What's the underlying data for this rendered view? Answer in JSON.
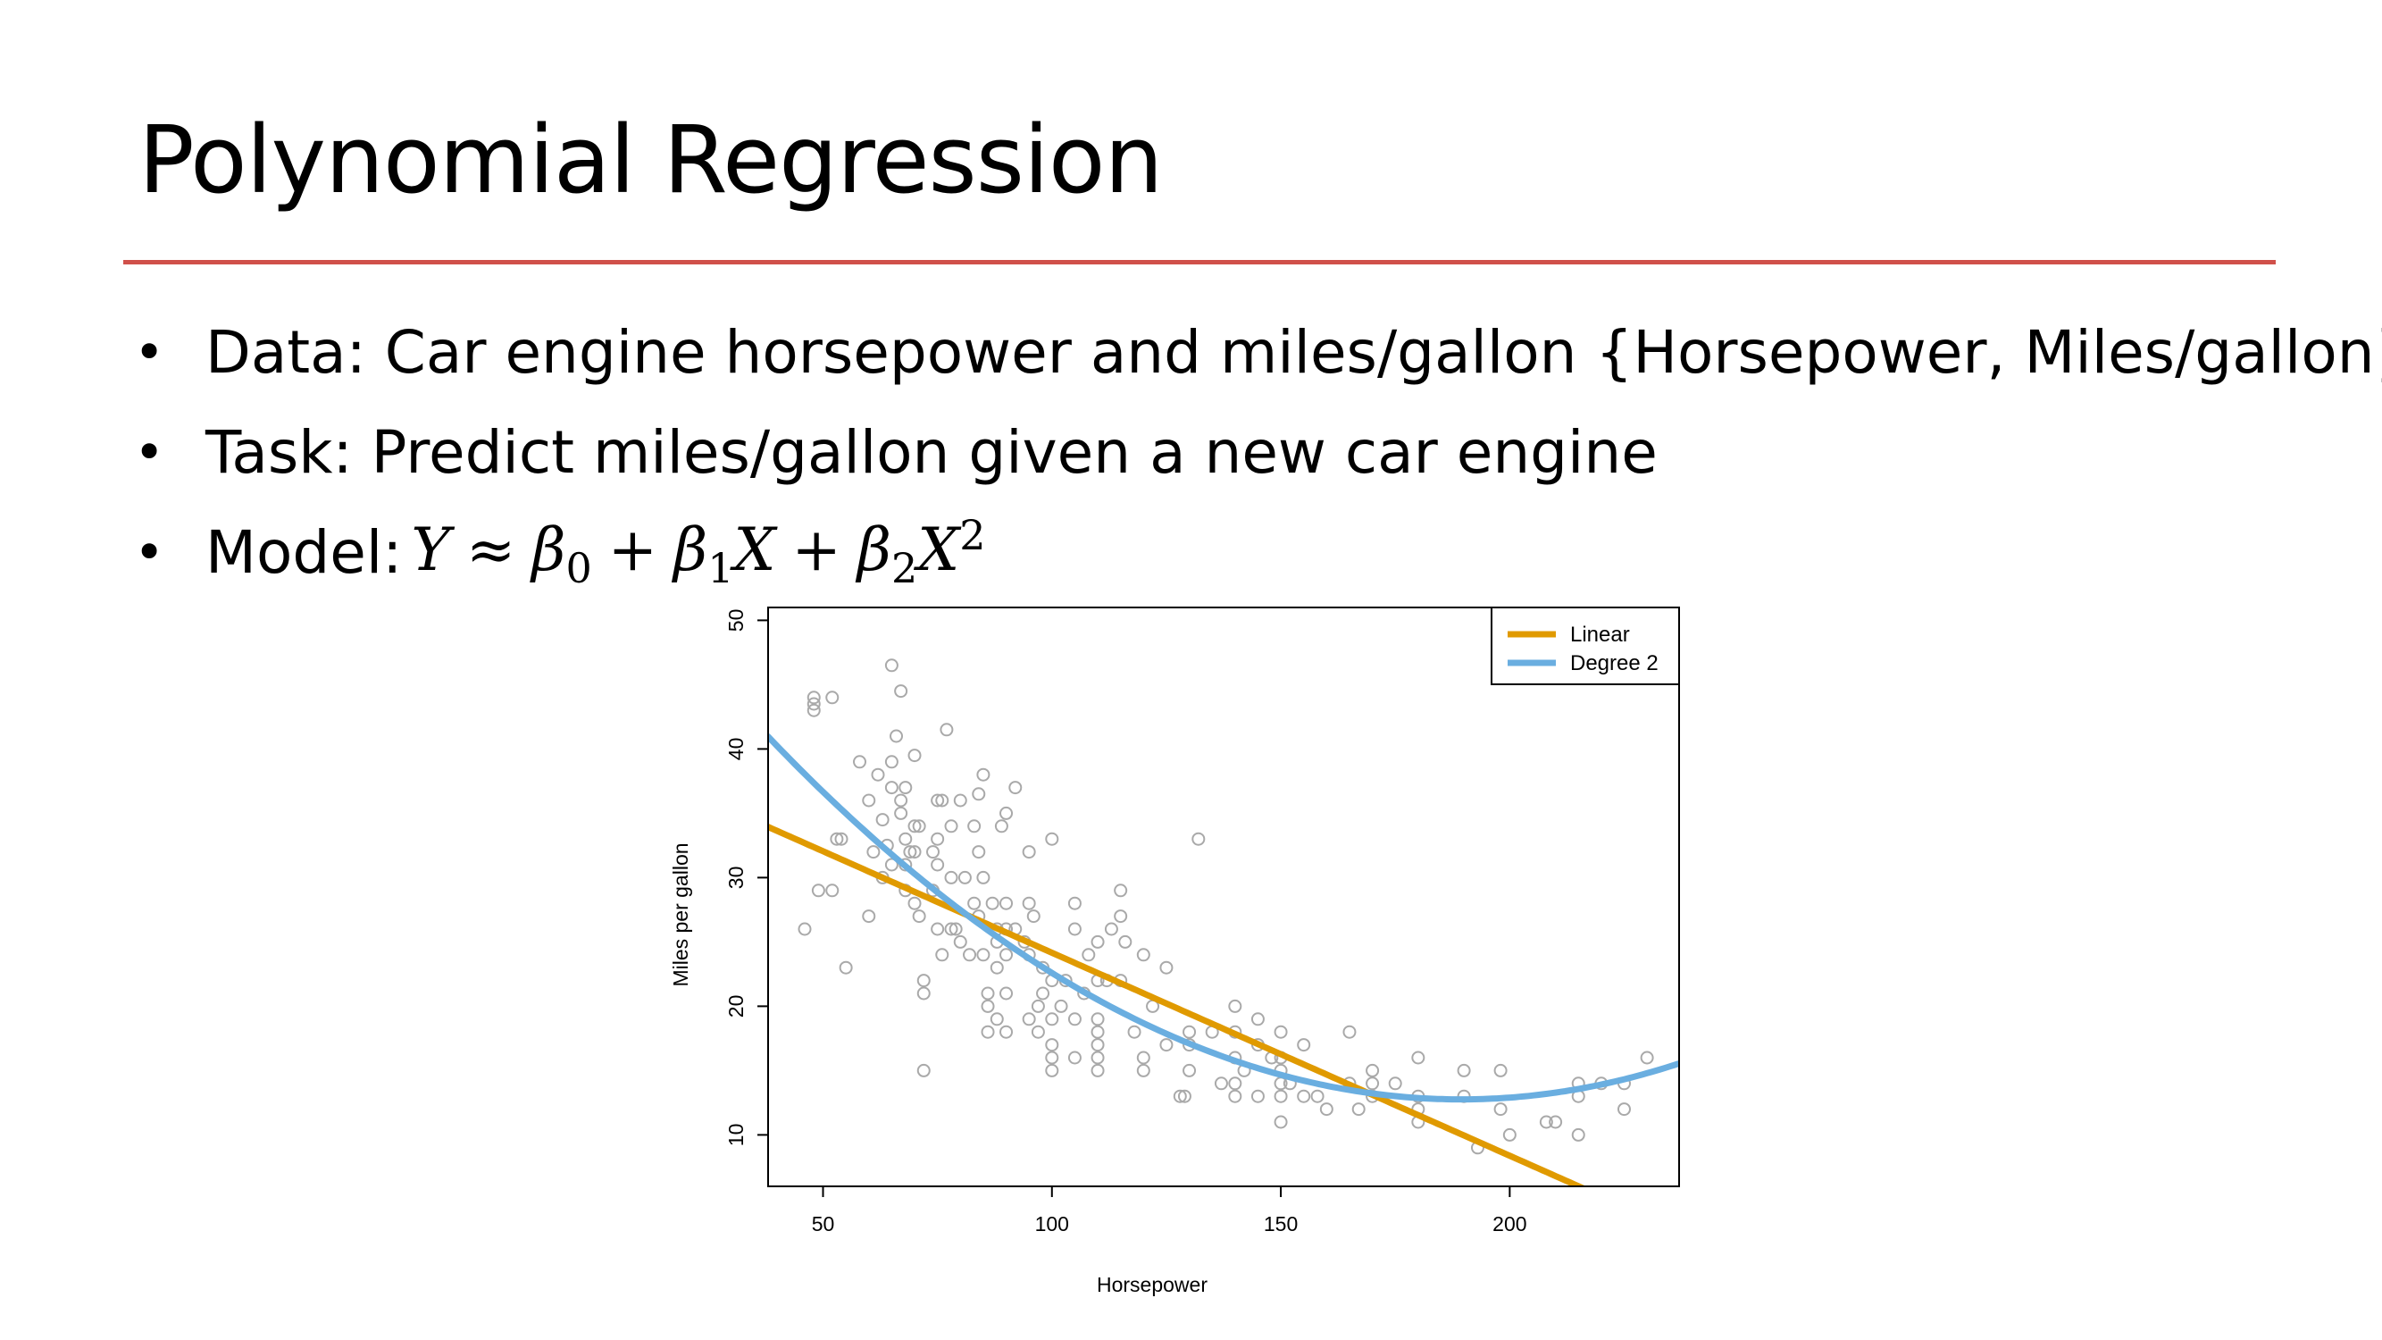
{
  "slide": {
    "title": "Polynomial Regression",
    "accent_color": "#d0504a",
    "bullets": [
      {
        "text": "Data: Car engine horsepower and miles/gallon {Horsepower, Miles/gallon}"
      },
      {
        "text": "Task: Predict miles/gallon given a new car engine"
      },
      {
        "label": "Model:",
        "equation": "Y ≈ β0 + β1X + β2X2"
      }
    ],
    "bullet_symbol": "•",
    "eq": {
      "Y": "Y",
      "approx": "≈",
      "beta": "β",
      "sub0": "0",
      "sub1": "1",
      "sub2": "2",
      "plus": "+",
      "X": "X",
      "sup2": "2"
    }
  },
  "chart_data": {
    "type": "scatter",
    "xlabel": "Horsepower",
    "ylabel": "Miles per gallon",
    "xlim": [
      38,
      237
    ],
    "ylim": [
      6,
      51
    ],
    "xticks": [
      50,
      100,
      150,
      200
    ],
    "yticks": [
      10,
      20,
      30,
      40,
      50
    ],
    "grid": false,
    "legend_position": "top-right",
    "point_color": "#a9a9a9",
    "points": [
      [
        46,
        26
      ],
      [
        48,
        43
      ],
      [
        48,
        44
      ],
      [
        48,
        43.5
      ],
      [
        49,
        29
      ],
      [
        52,
        29
      ],
      [
        52,
        44
      ],
      [
        53,
        33
      ],
      [
        54,
        33
      ],
      [
        55,
        23
      ],
      [
        58,
        39
      ],
      [
        60,
        36
      ],
      [
        60,
        27
      ],
      [
        61,
        32
      ],
      [
        62,
        38
      ],
      [
        63,
        30
      ],
      [
        63,
        34.5
      ],
      [
        64,
        32.5
      ],
      [
        65,
        37
      ],
      [
        65,
        39
      ],
      [
        65,
        31
      ],
      [
        65,
        46.5
      ],
      [
        66,
        41
      ],
      [
        67,
        44.5
      ],
      [
        67,
        35
      ],
      [
        67,
        36
      ],
      [
        68,
        37
      ],
      [
        68,
        33
      ],
      [
        68,
        29
      ],
      [
        68,
        31
      ],
      [
        69,
        32
      ],
      [
        70,
        39.5
      ],
      [
        70,
        34
      ],
      [
        70,
        32
      ],
      [
        70,
        28
      ],
      [
        71,
        34
      ],
      [
        71,
        27
      ],
      [
        72,
        22
      ],
      [
        72,
        21
      ],
      [
        72,
        15
      ],
      [
        74,
        32
      ],
      [
        74,
        29
      ],
      [
        75,
        36
      ],
      [
        75,
        33
      ],
      [
        75,
        31
      ],
      [
        75,
        26
      ],
      [
        76,
        36
      ],
      [
        76,
        24
      ],
      [
        77,
        41.5
      ],
      [
        78,
        34
      ],
      [
        78,
        30
      ],
      [
        78,
        26
      ],
      [
        79,
        26
      ],
      [
        80,
        36
      ],
      [
        80,
        25
      ],
      [
        81,
        30
      ],
      [
        82,
        24
      ],
      [
        83,
        34
      ],
      [
        83,
        28
      ],
      [
        84,
        32
      ],
      [
        84,
        36.5
      ],
      [
        84,
        27
      ],
      [
        85,
        38
      ],
      [
        85,
        30
      ],
      [
        85,
        24
      ],
      [
        86,
        21
      ],
      [
        86,
        20
      ],
      [
        86,
        18
      ],
      [
        87,
        28
      ],
      [
        88,
        26
      ],
      [
        88,
        25
      ],
      [
        88,
        23
      ],
      [
        88,
        19
      ],
      [
        89,
        34
      ],
      [
        90,
        35
      ],
      [
        90,
        28
      ],
      [
        90,
        26
      ],
      [
        90,
        24
      ],
      [
        90,
        21
      ],
      [
        90,
        18
      ],
      [
        92,
        37
      ],
      [
        92,
        26
      ],
      [
        94,
        25
      ],
      [
        95,
        32
      ],
      [
        95,
        28
      ],
      [
        95,
        24
      ],
      [
        95,
        19
      ],
      [
        96,
        27
      ],
      [
        97,
        20
      ],
      [
        97,
        18
      ],
      [
        98,
        23
      ],
      [
        98,
        21
      ],
      [
        100,
        33
      ],
      [
        100,
        22
      ],
      [
        100,
        19
      ],
      [
        100,
        17
      ],
      [
        100,
        16
      ],
      [
        100,
        15
      ],
      [
        102,
        20
      ],
      [
        103,
        22
      ],
      [
        105,
        28
      ],
      [
        105,
        26
      ],
      [
        105,
        19
      ],
      [
        105,
        16
      ],
      [
        107,
        21
      ],
      [
        108,
        24
      ],
      [
        110,
        25
      ],
      [
        110,
        22
      ],
      [
        110,
        19
      ],
      [
        110,
        18
      ],
      [
        110,
        17
      ],
      [
        110,
        16
      ],
      [
        110,
        15
      ],
      [
        112,
        22
      ],
      [
        113,
        26
      ],
      [
        115,
        29
      ],
      [
        115,
        27
      ],
      [
        115,
        22
      ],
      [
        116,
        25
      ],
      [
        118,
        18
      ],
      [
        120,
        24
      ],
      [
        120,
        16
      ],
      [
        120,
        15
      ],
      [
        122,
        20
      ],
      [
        125,
        23
      ],
      [
        125,
        17
      ],
      [
        128,
        13
      ],
      [
        129,
        13
      ],
      [
        130,
        18
      ],
      [
        130,
        17
      ],
      [
        130,
        15
      ],
      [
        132,
        33
      ],
      [
        135,
        18
      ],
      [
        137,
        14
      ],
      [
        140,
        20
      ],
      [
        140,
        18
      ],
      [
        140,
        16
      ],
      [
        140,
        14
      ],
      [
        140,
        13
      ],
      [
        142,
        15
      ],
      [
        145,
        19
      ],
      [
        145,
        17
      ],
      [
        145,
        13
      ],
      [
        148,
        16
      ],
      [
        150,
        18
      ],
      [
        150,
        16
      ],
      [
        150,
        15
      ],
      [
        150,
        14
      ],
      [
        150,
        13
      ],
      [
        150,
        11
      ],
      [
        152,
        14
      ],
      [
        155,
        17
      ],
      [
        155,
        13
      ],
      [
        158,
        13
      ],
      [
        160,
        12
      ],
      [
        165,
        18
      ],
      [
        165,
        14
      ],
      [
        167,
        12
      ],
      [
        170,
        15
      ],
      [
        170,
        14
      ],
      [
        170,
        13
      ],
      [
        175,
        14
      ],
      [
        180,
        16
      ],
      [
        180,
        13
      ],
      [
        180,
        12
      ],
      [
        180,
        11
      ],
      [
        190,
        15
      ],
      [
        190,
        13
      ],
      [
        193,
        9
      ],
      [
        198,
        15
      ],
      [
        198,
        12
      ],
      [
        200,
        10
      ],
      [
        208,
        11
      ],
      [
        210,
        11
      ],
      [
        215,
        14
      ],
      [
        215,
        13
      ],
      [
        215,
        10
      ],
      [
        220,
        14
      ],
      [
        225,
        14
      ],
      [
        225,
        12
      ],
      [
        230,
        16
      ]
    ],
    "series": [
      {
        "name": "Linear",
        "color": "#e09a00",
        "coefficients": [
          39.94,
          -0.1578
        ]
      },
      {
        "name": "Degree 2",
        "color": "#6aaee0",
        "coefficients": [
          56.9,
          -0.4662,
          0.001231
        ]
      }
    ]
  }
}
